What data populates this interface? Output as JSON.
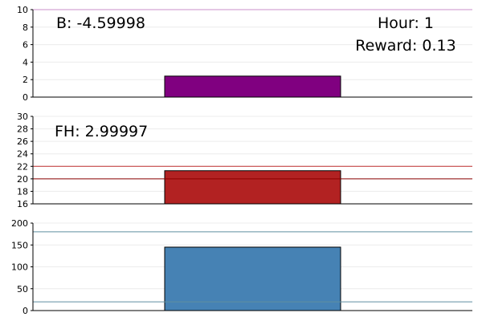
{
  "chart_data": [
    {
      "type": "bar",
      "ylim": [
        0,
        10
      ],
      "yticks": [
        "0",
        "2",
        "4",
        "6",
        "8",
        "10"
      ],
      "bar": {
        "value": 2.4,
        "color": "#800080"
      },
      "reference_lines": [
        {
          "value": 10,
          "color": "#c98fc9"
        }
      ],
      "grid": true,
      "annotations": [
        "B: -4.59998",
        "Hour: 1",
        "Reward: 0.13"
      ]
    },
    {
      "type": "bar",
      "ylim": [
        16,
        30
      ],
      "yticks": [
        "16",
        "18",
        "20",
        "22",
        "24",
        "26",
        "28",
        "30"
      ],
      "bar": {
        "value": 21.3,
        "color": "#b22222"
      },
      "reference_lines": [
        {
          "value": 22,
          "color": "#c03030"
        },
        {
          "value": 20,
          "color": "#8b0000"
        }
      ],
      "grid": true,
      "annotations": [
        "FH: 2.99997"
      ]
    },
    {
      "type": "bar",
      "ylim": [
        0,
        200
      ],
      "yticks": [
        "0",
        "50",
        "100",
        "150",
        "200"
      ],
      "bar": {
        "value": 145,
        "color": "#4682b4"
      },
      "reference_lines": [
        {
          "value": 180,
          "color": "#5f8fa0"
        },
        {
          "value": 20,
          "color": "#5f8fa0"
        }
      ],
      "grid": true,
      "annotations": []
    }
  ]
}
